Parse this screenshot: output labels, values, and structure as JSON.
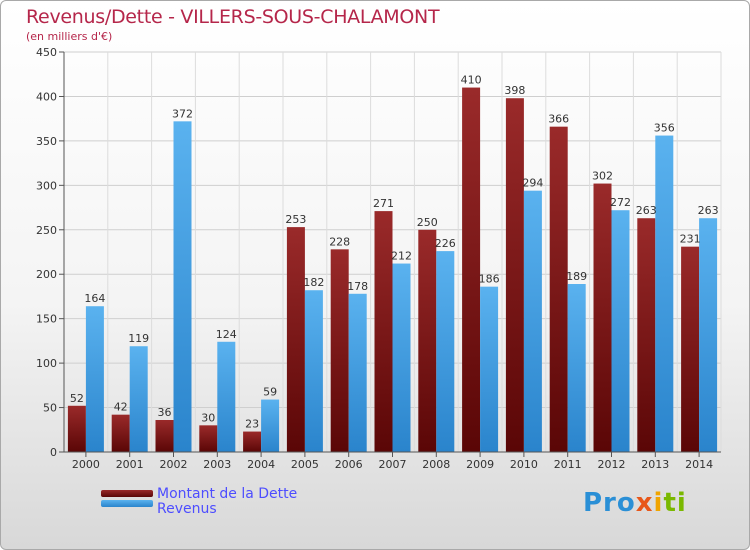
{
  "chart_data": {
    "type": "bar",
    "title": "Revenus/Dette - VILLERS-SOUS-CHALAMONT",
    "subtitle": "(en milliers d'€)",
    "categories": [
      "2000",
      "2001",
      "2002",
      "2003",
      "2004",
      "2005",
      "2006",
      "2007",
      "2008",
      "2009",
      "2010",
      "2011",
      "2012",
      "2013",
      "2014"
    ],
    "series": [
      {
        "name": "Montant de la Dette",
        "color": "#7a1212",
        "values": [
          52,
          42,
          36,
          30,
          23,
          253,
          228,
          271,
          250,
          410,
          398,
          366,
          302,
          263,
          231
        ]
      },
      {
        "name": "Revenus",
        "color": "#3c9ee8",
        "values": [
          164,
          119,
          372,
          124,
          59,
          182,
          178,
          212,
          226,
          186,
          294,
          189,
          272,
          356,
          263
        ]
      }
    ],
    "yticks": [
      0,
      50,
      100,
      150,
      200,
      250,
      300,
      350,
      400,
      450
    ],
    "ylim": [
      0,
      450
    ],
    "grid": true,
    "legend_position": "bottom-left"
  },
  "logo": {
    "parts": [
      "Pro",
      "x",
      "i",
      "ti"
    ]
  }
}
